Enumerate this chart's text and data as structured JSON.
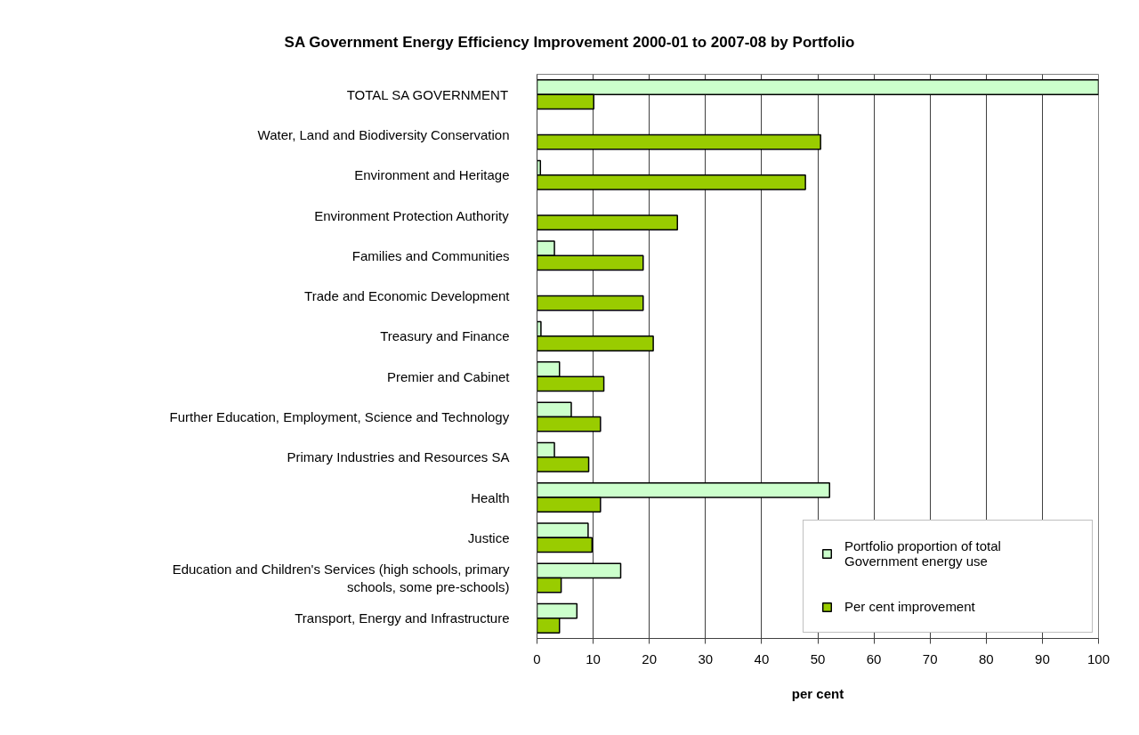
{
  "chart_data": {
    "type": "bar",
    "orientation": "horizontal",
    "title": "SA Government Energy Efficiency Improvement 2000-01 to 2007-08 by Portfolio",
    "xlabel": "per cent",
    "categories": [
      "TOTAL SA GOVERNMENT",
      "Water, Land and Biodiversity Conservation",
      "Environment and Heritage",
      "Environment Protection Authority",
      "Families and Communities",
      "Trade and Economic Development",
      "Treasury and Finance",
      "Premier and Cabinet",
      "Further Education, Employment, Science and Technology",
      "Primary Industries and Resources SA",
      "Health",
      "Justice",
      "Education and Children's Services (high schools, primary schools, some pre-schools)",
      "Transport, Energy and Infrastructure"
    ],
    "series": [
      {
        "name": "Portfolio proportion of total Government energy use",
        "color": "#ccffcc",
        "values": [
          100,
          null,
          0.6,
          null,
          3.1,
          null,
          0.7,
          4.0,
          6.1,
          3.1,
          52.1,
          9.1,
          14.9,
          7.1
        ]
      },
      {
        "name": "Per cent improvement",
        "color": "#99cc00",
        "values": [
          10.1,
          50.5,
          47.8,
          25.0,
          18.9,
          18.9,
          20.7,
          11.9,
          11.3,
          9.2,
          11.3,
          9.8,
          4.3,
          4.0
        ]
      }
    ],
    "xlim": [
      0,
      100
    ],
    "xticks": [
      0,
      10,
      20,
      30,
      40,
      50,
      60,
      70,
      80,
      90,
      100
    ],
    "grid": "x",
    "legend": "bottom right"
  }
}
